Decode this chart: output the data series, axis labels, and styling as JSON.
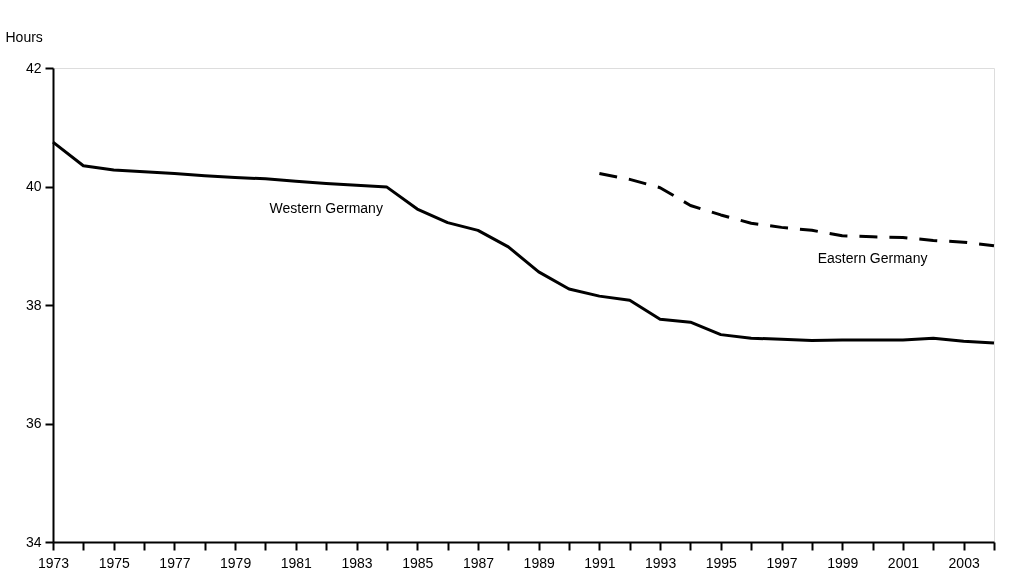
{
  "chart_data": {
    "type": "line",
    "ylabel": "Hours",
    "x": [
      1973,
      1974,
      1975,
      1976,
      1977,
      1978,
      1979,
      1980,
      1981,
      1982,
      1983,
      1984,
      1985,
      1986,
      1987,
      1988,
      1989,
      1990,
      1991,
      1992,
      1993,
      1994,
      1995,
      1996,
      1997,
      1998,
      1999,
      2000,
      2001,
      2002,
      2003,
      2004
    ],
    "series": [
      {
        "name": "Western Germany",
        "color": "#000000",
        "line_style": "solid",
        "values": [
          40.75,
          40.35,
          40.28,
          40.25,
          40.22,
          40.18,
          40.15,
          40.13,
          40.09,
          40.05,
          40.02,
          39.99,
          39.62,
          39.39,
          39.26,
          38.98,
          38.56,
          38.27,
          38.15,
          38.08,
          37.76,
          37.71,
          37.5,
          37.44,
          37.42,
          37.4,
          37.41,
          37.41,
          37.41,
          37.44,
          37.39,
          37.36
        ]
      },
      {
        "name": "Eastern Germany",
        "color": "#000000",
        "line_style": "dashed",
        "x": [
          1991,
          1992,
          1993,
          1994,
          1995,
          1996,
          1997,
          1998,
          1999,
          2000,
          2001,
          2002,
          2003,
          2004
        ],
        "values": [
          40.22,
          40.12,
          39.98,
          39.68,
          39.52,
          39.38,
          39.31,
          39.26,
          39.17,
          39.15,
          39.14,
          39.09,
          39.06,
          39.0
        ]
      }
    ],
    "xlim": [
      1973,
      2004
    ],
    "xticks": [
      1973,
      {
        "value": 1974,
        "label": null
      },
      1975,
      {
        "value": 1976,
        "label": null
      },
      1977,
      {
        "value": 1978,
        "label": null
      },
      1979,
      {
        "value": 1980,
        "label": null
      },
      1981,
      {
        "value": 1982,
        "label": null
      },
      1983,
      {
        "value": 1984,
        "label": null
      },
      1985,
      {
        "value": 1986,
        "label": null
      },
      1987,
      {
        "value": 1988,
        "label": null
      },
      1989,
      {
        "value": 1990,
        "label": null
      },
      1991,
      {
        "value": 1992,
        "label": null
      },
      1993,
      {
        "value": 1994,
        "label": null
      },
      1995,
      {
        "value": 1996,
        "label": null
      },
      1997,
      {
        "value": 1998,
        "label": null
      },
      1999,
      {
        "value": 2000,
        "label": null
      },
      2001,
      {
        "value": 2002,
        "label": null
      },
      2003,
      {
        "value": 2004,
        "label": null
      }
    ],
    "ylim": [
      34,
      42
    ],
    "yticks": [
      34,
      36,
      38,
      40,
      42
    ],
    "grid": false,
    "legend": false,
    "marker": "none"
  }
}
